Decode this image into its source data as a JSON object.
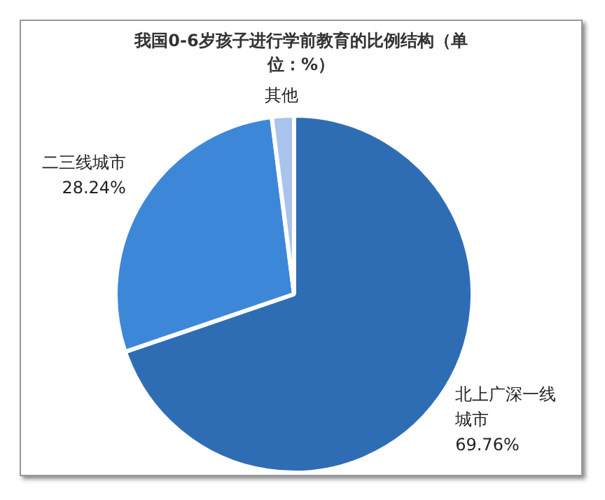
{
  "chart_data": {
    "type": "pie",
    "title": "我国0-6岁孩子进行学前教育的比例结构（单位：%）",
    "categories": [
      "北上广深一线城市",
      "二三线城市",
      "其他"
    ],
    "values": [
      69.76,
      28.24,
      2
    ],
    "colors": [
      "#2e6db4",
      "#3d87d9",
      "#a9c4ec"
    ],
    "value_labels": [
      "69.76%",
      "28.24%",
      null
    ],
    "legend": false
  }
}
